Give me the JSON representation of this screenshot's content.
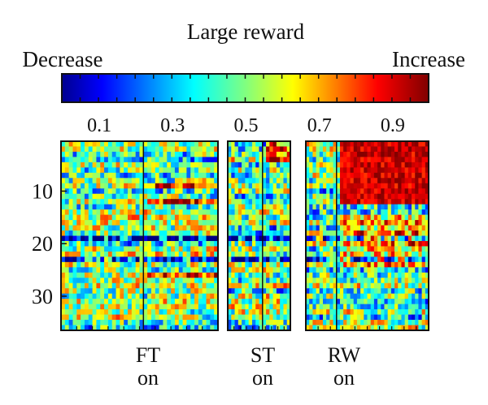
{
  "chart_data": {
    "type": "heatmap",
    "title": "Large reward",
    "colorbar": {
      "left_label": "Decrease",
      "right_label": "Increase",
      "range": [
        0,
        1
      ],
      "ticks": [
        0.1,
        0.3,
        0.5,
        0.7,
        0.9
      ],
      "tick_labels": [
        "0.1",
        "0.3",
        "0.5",
        "0.7",
        "0.9"
      ],
      "colormap": "jet"
    },
    "y_axis": {
      "range": [
        1,
        36
      ],
      "ticks": [
        10,
        20,
        30
      ],
      "tick_labels": [
        "10",
        "20",
        "30"
      ]
    },
    "n_rows": 36,
    "panels": [
      {
        "name": "FT",
        "sub": "on",
        "n_bins": 40,
        "event_bin": 21,
        "description": "Activity aligned to FT onset; mostly near 0.5 with sparse increases after onset"
      },
      {
        "name": "ST",
        "sub": "on",
        "n_bins": 18,
        "event_bin": 10,
        "description": "Activity aligned to ST onset; mixed increases and decreases"
      },
      {
        "name": "RW",
        "sub": "on",
        "n_bins": 36,
        "event_bin": 9,
        "description": "Activity aligned to RW onset; strong increase in top rows after reward"
      }
    ],
    "colors": {
      "background": "#ffffff",
      "frame": "#111111"
    }
  }
}
